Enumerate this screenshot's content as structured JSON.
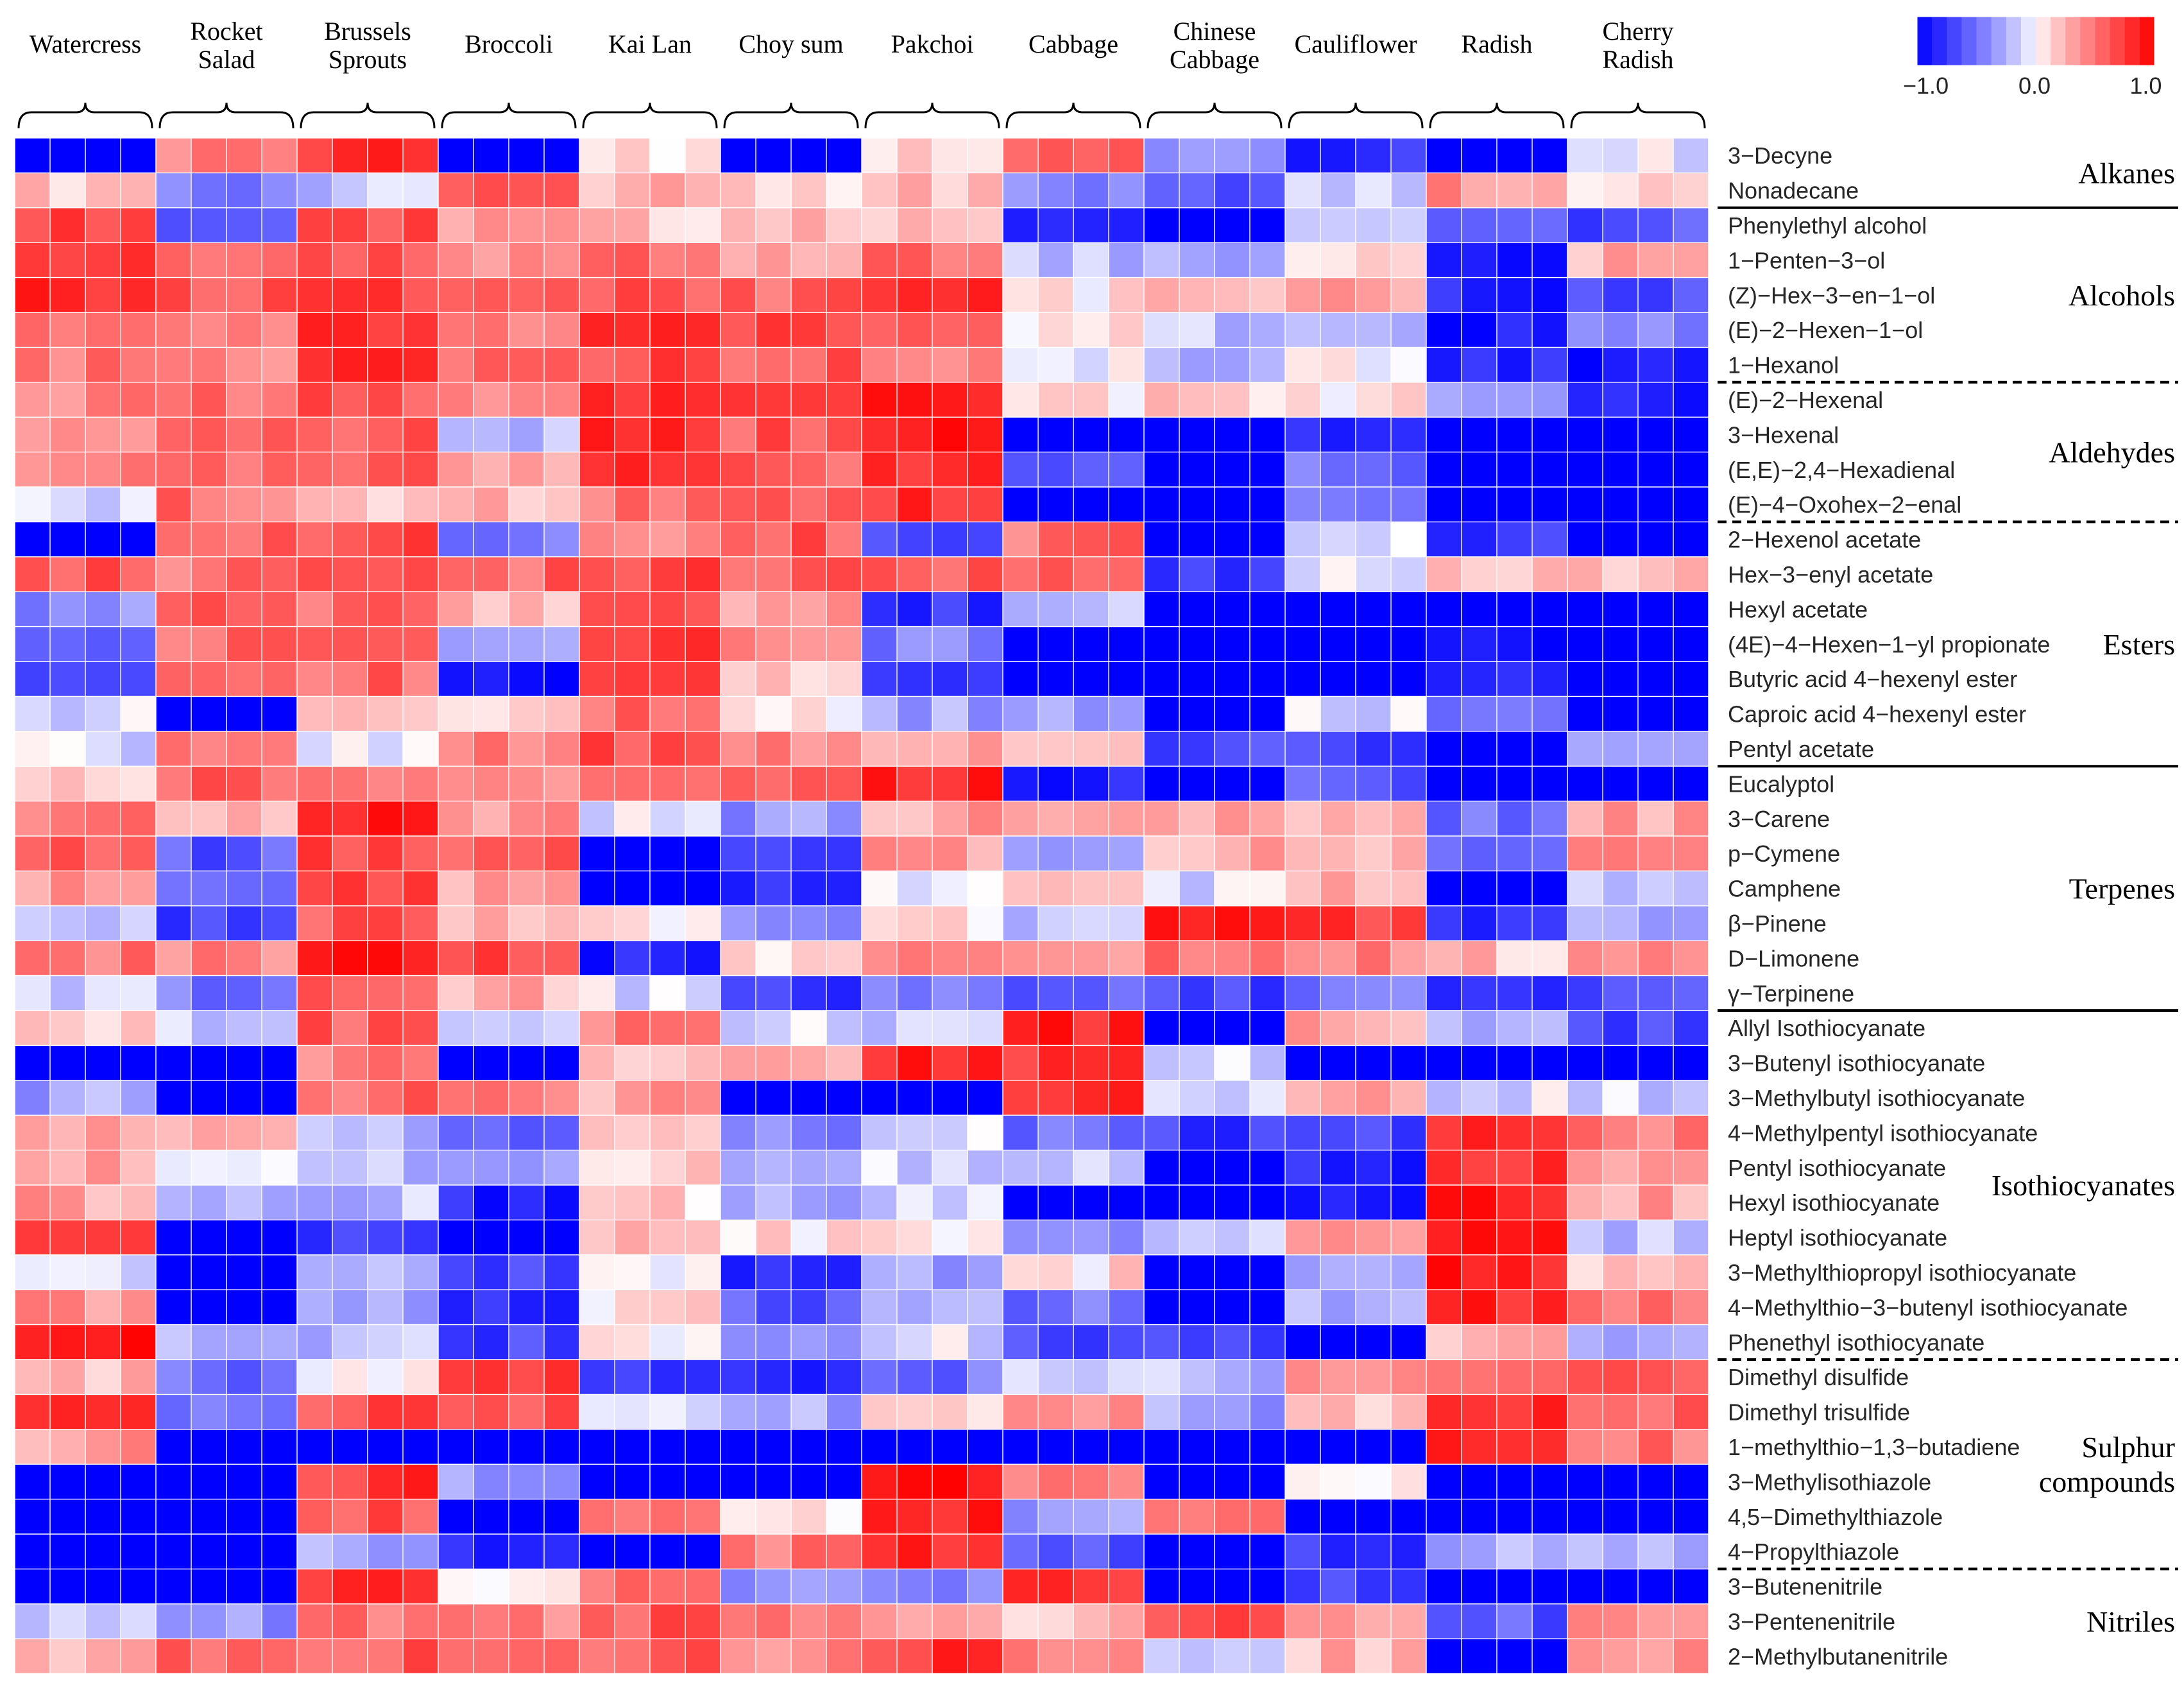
{
  "chart_data": {
    "type": "heatmap",
    "title": "",
    "replicates_per_sample": 4,
    "samples": [
      {
        "lines": [
          "Watercress"
        ]
      },
      {
        "lines": [
          "Rocket",
          "Salad"
        ]
      },
      {
        "lines": [
          "Brussels",
          "Sprouts"
        ]
      },
      {
        "lines": [
          "Broccoli"
        ]
      },
      {
        "lines": [
          "Kai Lan"
        ]
      },
      {
        "lines": [
          "Choy sum"
        ]
      },
      {
        "lines": [
          "Pakchoi"
        ]
      },
      {
        "lines": [
          "Cabbage"
        ]
      },
      {
        "lines": [
          "Chinese",
          "Cabbage"
        ]
      },
      {
        "lines": [
          "Cauliflower"
        ]
      },
      {
        "lines": [
          "Radish"
        ]
      },
      {
        "lines": [
          "Cherry",
          "Radish"
        ]
      }
    ],
    "compounds": [
      "3−Decyne",
      "Nonadecane",
      "Phenylethyl alcohol",
      "1−Penten−3−ol",
      "(Z)−Hex−3−en−1−ol",
      "(E)−2−Hexen−1−ol",
      "1−Hexanol",
      "(E)−2−Hexenal",
      "3−Hexenal",
      "(E,E)−2,4−Hexadienal",
      "(E)−4−Oxohex−2−enal",
      "2−Hexenol acetate",
      "Hex−3−enyl acetate",
      "Hexyl acetate",
      "(4E)−4−Hexen−1−yl propionate",
      "Butyric acid 4−hexenyl ester",
      "Caproic acid 4−hexenyl ester",
      "Pentyl acetate",
      "Eucalyptol",
      "3−Carene",
      "p−Cymene",
      "Camphene",
      "β−Pinene",
      "D−Limonene",
      "γ−Terpinene",
      "Allyl Isothiocyanate",
      "3−Butenyl isothiocyanate",
      "3−Methylbutyl isothiocyanate",
      "4−Methylpentyl isothiocyanate",
      "Pentyl isothiocyanate",
      "Hexyl isothiocyanate",
      "Heptyl isothiocyanate",
      "3−Methylthiopropyl isothiocyanate",
      "4−Methylthio−3−butenyl isothiocyanate",
      "Phenethyl isothiocyanate",
      "Dimethyl disulfide",
      "Dimethyl trisulfide",
      "1−methylthio−1,3−butadiene",
      "3−Methylisothiazole",
      "4,5−Dimethylthiazole",
      "4−Propylthiazole",
      "3−Butenenitrile",
      "3−Pentenenitrile",
      "2−Methylbutanenitrile"
    ],
    "groups": [
      {
        "lines": [
          "Alkanes"
        ],
        "start": 0,
        "end": 1,
        "separator_after": "solid"
      },
      {
        "lines": [
          "Alcohols"
        ],
        "start": 2,
        "end": 6,
        "separator_after": "dashed"
      },
      {
        "lines": [
          "Aldehydes"
        ],
        "start": 7,
        "end": 10,
        "separator_after": "dashed"
      },
      {
        "lines": [
          "Esters"
        ],
        "start": 11,
        "end": 17,
        "separator_after": "solid"
      },
      {
        "lines": [
          "Terpenes"
        ],
        "start": 18,
        "end": 24,
        "separator_after": "solid"
      },
      {
        "lines": [
          "Isothiocyanates"
        ],
        "start": 25,
        "end": 34,
        "separator_after": "dashed"
      },
      {
        "lines": [
          "Sulphur",
          "compounds"
        ],
        "start": 35,
        "end": 40,
        "separator_after": "dashed"
      },
      {
        "lines": [
          "Nitriles"
        ],
        "start": 41,
        "end": 43,
        "separator_after": ""
      }
    ],
    "sample_values": [
      [
        -1,
        0.15,
        0.65,
        0.7,
        0.85,
        0.45,
        0.5,
        0.4,
        0.4,
        0.4,
        -0.1,
        -1,
        0.65,
        -0.4,
        -0.6,
        -0.6,
        -0.1,
        -0.1,
        0.1,
        0.45,
        0.6,
        0.3,
        -0.15,
        0.5,
        -0.15,
        0.15,
        -1,
        -0.3,
        0.35,
        0.3,
        0.3,
        0.6,
        -0.1,
        0.35,
        0.95,
        0.2,
        0.7,
        0.35,
        -1,
        -1,
        -1,
        -1,
        -0.2,
        0.3
      ],
      [
        0.45,
        -0.4,
        -0.5,
        0.55,
        0.6,
        0.45,
        0.35,
        0.55,
        0.55,
        0.55,
        0.5,
        0.55,
        0.5,
        0.55,
        0.55,
        0.55,
        -1,
        0.4,
        0.55,
        0.3,
        -0.6,
        -0.6,
        -0.7,
        0.45,
        -0.5,
        -0.15,
        -1,
        -1,
        0.3,
        0.05,
        -0.2,
        -1,
        -1,
        -1,
        -0.2,
        -0.5,
        -0.55,
        -1,
        -1,
        -1,
        -1,
        -1,
        -0.35,
        0.6
      ],
      [
        0.8,
        -0.2,
        0.6,
        0.6,
        0.75,
        0.85,
        0.85,
        0.6,
        0.6,
        0.6,
        0.1,
        0.65,
        0.6,
        0.55,
        0.55,
        0.55,
        0.15,
        -0.1,
        0.5,
        0.85,
        0.7,
        0.75,
        0.6,
        0.85,
        0.65,
        0.6,
        0.45,
        0.55,
        -0.2,
        -0.2,
        -0.2,
        -0.7,
        -0.2,
        -0.3,
        -0.2,
        -0.05,
        0.65,
        -1,
        0.75,
        0.6,
        -0.3,
        0.75,
        0.5,
        0.6
      ],
      [
        -1,
        0.7,
        0.35,
        0.4,
        0.6,
        0.5,
        0.55,
        0.45,
        -0.2,
        0.3,
        0.2,
        -0.45,
        0.55,
        0.2,
        -0.3,
        -0.95,
        0.2,
        0.4,
        0.35,
        0.35,
        0.65,
        0.3,
        0.2,
        0.7,
        0.25,
        -0.1,
        -1,
        0.4,
        -0.65,
        -0.3,
        -0.85,
        -1,
        -0.75,
        -0.8,
        -0.7,
        0.75,
        0.65,
        -1,
        -0.3,
        -1,
        -0.8,
        0.1,
        0.45,
        0.5
      ],
      [
        0.15,
        0.25,
        0.2,
        0.55,
        0.65,
        0.75,
        0.65,
        0.75,
        0.75,
        0.75,
        0.5,
        0.3,
        0.7,
        0.75,
        0.7,
        0.7,
        0.55,
        0.65,
        0.65,
        -0.05,
        -1,
        -1,
        0.05,
        -0.85,
        -0.1,
        0.45,
        0.25,
        0.3,
        0.25,
        0.1,
        0.15,
        0.2,
        -0.1,
        0.1,
        0.05,
        -0.7,
        -0.15,
        -1,
        -1,
        0.5,
        -1,
        0.5,
        0.6,
        0.55
      ],
      [
        -1,
        0.15,
        0.25,
        0.35,
        0.55,
        0.65,
        0.6,
        0.65,
        0.6,
        0.6,
        0.6,
        0.6,
        0.6,
        0.35,
        0.4,
        0.15,
        0.05,
        0.45,
        0.55,
        -0.35,
        -0.75,
        -0.8,
        -0.4,
        0.15,
        -0.75,
        -0.1,
        0.25,
        -1,
        -0.4,
        -0.35,
        -0.25,
        0.1,
        -0.75,
        -0.6,
        -0.4,
        -0.85,
        -0.3,
        -1,
        -1,
        0.1,
        0.45,
        -0.4,
        0.55,
        0.45
      ],
      [
        0.15,
        0.2,
        0.25,
        0.55,
        0.75,
        0.55,
        0.35,
        0.85,
        0.85,
        0.75,
        0.8,
        -0.75,
        0.55,
        -0.8,
        -0.45,
        -0.7,
        -0.3,
        0.35,
        0.85,
        0.3,
        0.35,
        -0.1,
        0.1,
        0.35,
        -0.45,
        -0.15,
        0.85,
        -1,
        -0.1,
        -0.15,
        -0.15,
        0.1,
        -0.3,
        -0.3,
        -0.1,
        -0.5,
        0.1,
        -1,
        0.85,
        0.85,
        0.85,
        -0.5,
        0.3,
        0.75
      ],
      [
        0.55,
        -0.4,
        -0.8,
        -0.2,
        0.05,
        0.1,
        -0.05,
        0.1,
        -1,
        -0.65,
        -1,
        0.5,
        0.5,
        -0.25,
        -1,
        -1,
        -0.3,
        0.1,
        -0.9,
        0.3,
        -0.4,
        0.15,
        -0.2,
        0.3,
        -0.6,
        0.85,
        0.75,
        0.75,
        -0.5,
        -0.15,
        -1,
        -0.35,
        0.1,
        -0.5,
        -0.7,
        -0.15,
        0.3,
        -1,
        0.5,
        -0.35,
        -0.65,
        0.75,
        0.2,
        0.45
      ],
      [
        -0.35,
        -0.7,
        -1,
        -0.25,
        0.15,
        -0.2,
        -0.25,
        0.15,
        -1,
        -1,
        -1,
        -1,
        -0.8,
        -1,
        -1,
        -1,
        -1,
        -0.7,
        -1,
        0.3,
        0.25,
        -0.1,
        0.85,
        0.5,
        -0.7,
        -1,
        -0.1,
        -0.2,
        -0.75,
        -1,
        -1,
        -0.15,
        -1,
        -1,
        -0.75,
        -0.2,
        -0.3,
        -1,
        -1,
        0.55,
        -1,
        -1,
        0.6,
        -0.15
      ],
      [
        -0.8,
        -0.15,
        -0.2,
        0.05,
        0.3,
        -0.2,
        0.05,
        0.1,
        -0.8,
        -0.5,
        -0.5,
        -0.1,
        -0.1,
        -1,
        -1,
        -1,
        -0.1,
        -0.7,
        -0.6,
        0.3,
        0.3,
        0.25,
        0.7,
        0.45,
        -0.45,
        0.3,
        -1,
        0.3,
        -0.75,
        -0.8,
        -0.9,
        0.3,
        -0.2,
        -0.3,
        -1,
        0.3,
        0.2,
        -1,
        0.1,
        -1,
        -0.75,
        -0.7,
        0.3,
        0.25
      ],
      [
        -1,
        0.35,
        -0.65,
        -0.9,
        -0.85,
        -0.9,
        -0.85,
        -0.3,
        -1,
        -1,
        -1,
        -0.75,
        0.2,
        -1,
        -0.95,
        -0.9,
        -0.5,
        -1,
        -1,
        -0.5,
        -0.5,
        -1,
        -0.8,
        0.2,
        -0.75,
        -0.2,
        -1,
        -0.1,
        0.85,
        0.8,
        0.85,
        0.85,
        0.85,
        0.85,
        0.25,
        0.5,
        0.8,
        0.85,
        -1,
        -1,
        -0.3,
        -1,
        -0.6,
        -1
      ],
      [
        -0.05,
        0.05,
        -0.65,
        0.25,
        -0.7,
        -0.45,
        -0.9,
        -0.85,
        -1,
        -1,
        -1,
        -1,
        0.25,
        -1,
        -1,
        -1,
        -1,
        -0.2,
        -1,
        0.3,
        0.55,
        -0.2,
        -0.25,
        0.35,
        -0.6,
        -0.7,
        -1,
        -0.15,
        0.5,
        0.3,
        0.3,
        -0.2,
        0.2,
        0.55,
        -0.3,
        0.55,
        0.6,
        0.5,
        -1,
        -1,
        -0.3,
        -1,
        0.4,
        0.4
      ]
    ],
    "colorbar": {
      "ticks": [
        "−1.0",
        "0.0",
        "1.0"
      ],
      "range": [
        -1,
        1
      ],
      "low_color": "#0000ff",
      "mid_color": "#ffffff",
      "high_color": "#ff0000"
    }
  }
}
